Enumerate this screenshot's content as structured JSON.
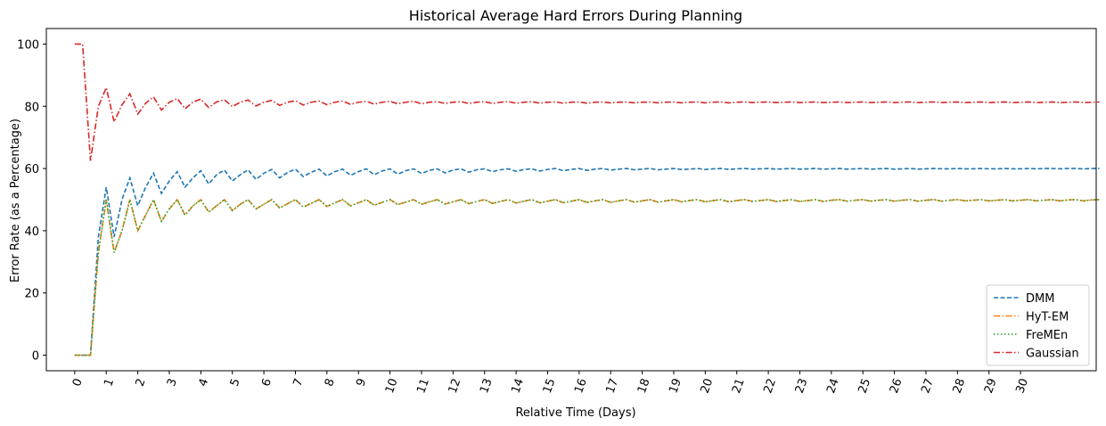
{
  "chart_data": {
    "type": "line",
    "title": "Historical Average Hard Errors During Planning",
    "xlabel": "Relative Time (Days)",
    "ylabel": "Error Rate (as a Percentage)",
    "xlim": [
      -0.9,
      32.4
    ],
    "ylim": [
      -5,
      105
    ],
    "x_ticks": [
      0,
      1,
      2,
      3,
      4,
      5,
      6,
      7,
      8,
      9,
      10,
      11,
      12,
      13,
      14,
      15,
      16,
      17,
      18,
      19,
      20,
      21,
      22,
      23,
      24,
      25,
      26,
      27,
      28,
      29,
      30
    ],
    "y_ticks": [
      0,
      20,
      40,
      60,
      80,
      100
    ],
    "legend": "lower-right",
    "grid": false,
    "x_step": 0.25,
    "series": [
      {
        "name": "DMM",
        "color": "#1f77b4",
        "dash": "dashed",
        "values": [
          0,
          0,
          0,
          38,
          54,
          38,
          50,
          57,
          48,
          54,
          58.5,
          52,
          56,
          59,
          54,
          57,
          59.3,
          55,
          58,
          59.5,
          56,
          58,
          59.6,
          56.5,
          58.5,
          59.7,
          57,
          58.7,
          59.8,
          57.4,
          58.8,
          59.8,
          57.6,
          59,
          59.8,
          57.8,
          59,
          59.9,
          58,
          59.2,
          59.9,
          58.2,
          59.3,
          59.9,
          58.4,
          59.4,
          59.9,
          58.6,
          59.5,
          59.9,
          58.8,
          59.6,
          59.9,
          59,
          59.6,
          59.9,
          59.1,
          59.7,
          59.9,
          59.2,
          59.7,
          60,
          59.3,
          59.7,
          60,
          59.4,
          59.8,
          60,
          59.5,
          59.8,
          60,
          59.6,
          59.8,
          60,
          59.6,
          59.8,
          60,
          59.7,
          59.8,
          60,
          59.7,
          59.9,
          60,
          59.7,
          59.9,
          60,
          59.8,
          59.9,
          60,
          59.8,
          59.9,
          60,
          59.8,
          59.9,
          60,
          59.8,
          59.9,
          60,
          59.8,
          59.9,
          60,
          59.8,
          59.9,
          60,
          59.8,
          59.9,
          60,
          59.8,
          59.9,
          60,
          59.9,
          59.9,
          60,
          59.9,
          59.9,
          60,
          59.9,
          59.9,
          60,
          59.9,
          59.9,
          60,
          59.9,
          60,
          60,
          59.9,
          60,
          60,
          59.9,
          60,
          60
        ]
      },
      {
        "name": "HyT-EM",
        "color": "#ff7f0e",
        "dash": "dashdot",
        "values": [
          0,
          0,
          0,
          33,
          50,
          33,
          40,
          50,
          40,
          45,
          50,
          43,
          47,
          50,
          45,
          48,
          50,
          46,
          48,
          50,
          46.5,
          48.5,
          50,
          47,
          48.5,
          50,
          47.3,
          48.7,
          50,
          47.6,
          48.8,
          50,
          47.8,
          49,
          50,
          48,
          49,
          50,
          48.2,
          49.1,
          50,
          48.4,
          49.2,
          50,
          48.5,
          49.3,
          50,
          48.6,
          49.3,
          50,
          48.7,
          49.4,
          50,
          48.8,
          49.4,
          50,
          48.9,
          49.5,
          50,
          49,
          49.5,
          50,
          49,
          49.5,
          50,
          49.1,
          49.6,
          50,
          49.1,
          49.6,
          50,
          49.2,
          49.6,
          50,
          49.2,
          49.6,
          50,
          49.3,
          49.7,
          50,
          49.3,
          49.7,
          50,
          49.3,
          49.7,
          50,
          49.4,
          49.7,
          50,
          49.4,
          49.7,
          50,
          49.4,
          49.7,
          50,
          49.4,
          49.8,
          50,
          49.5,
          49.8,
          50,
          49.5,
          49.8,
          50,
          49.5,
          49.8,
          50,
          49.5,
          49.8,
          50,
          49.5,
          49.8,
          50,
          49.6,
          49.8,
          50,
          49.6,
          49.8,
          50,
          49.6,
          49.8,
          50,
          49.6,
          49.8,
          50,
          49.6,
          49.9,
          50,
          49.6,
          49.9,
          50
        ]
      },
      {
        "name": "FreMEn",
        "color": "#2ca02c",
        "dash": "dotted",
        "values": [
          0,
          0,
          0,
          33,
          50,
          33,
          40,
          50,
          40,
          45,
          50,
          43,
          47,
          50,
          45,
          48,
          50,
          46,
          48,
          50,
          46.5,
          48.5,
          50,
          47,
          48.5,
          50,
          47.3,
          48.7,
          50,
          47.6,
          48.8,
          50,
          47.8,
          49,
          50,
          48,
          49,
          50,
          48.2,
          49.1,
          50,
          48.4,
          49.2,
          50,
          48.5,
          49.3,
          50,
          48.6,
          49.3,
          50,
          48.7,
          49.4,
          50,
          48.8,
          49.4,
          50,
          48.9,
          49.5,
          50,
          49,
          49.5,
          50,
          49,
          49.5,
          50,
          49.1,
          49.6,
          50,
          49.1,
          49.6,
          50,
          49.2,
          49.6,
          50,
          49.2,
          49.6,
          50,
          49.3,
          49.7,
          50,
          49.3,
          49.7,
          50,
          49.3,
          49.7,
          50,
          49.4,
          49.7,
          50,
          49.4,
          49.7,
          50,
          49.4,
          49.7,
          50,
          49.4,
          49.8,
          50,
          49.5,
          49.8,
          50,
          49.5,
          49.8,
          50,
          49.5,
          49.8,
          50,
          49.5,
          49.8,
          50,
          49.5,
          49.8,
          50,
          49.6,
          49.8,
          50,
          49.6,
          49.8,
          50,
          49.6,
          49.8,
          50,
          49.6,
          49.8,
          50,
          49.6,
          49.9,
          50,
          49.6,
          49.9,
          50
        ]
      },
      {
        "name": "Gaussian",
        "color": "#d62728",
        "dash": "dashdot",
        "values": [
          100,
          100,
          62.5,
          80,
          86,
          75,
          80.5,
          84,
          77.5,
          81,
          83,
          78.8,
          81.3,
          82.5,
          79.2,
          81.4,
          82.3,
          79.6,
          81.4,
          82.1,
          79.9,
          81.3,
          82,
          80.1,
          81.3,
          81.9,
          80.3,
          81.3,
          81.8,
          80.4,
          81.3,
          81.7,
          80.5,
          81.3,
          81.7,
          80.6,
          81.3,
          81.6,
          80.7,
          81.3,
          81.6,
          80.8,
          81.3,
          81.6,
          80.8,
          81.3,
          81.5,
          80.9,
          81.3,
          81.5,
          80.9,
          81.3,
          81.5,
          80.9,
          81.3,
          81.5,
          81,
          81.3,
          81.5,
          81,
          81.3,
          81.4,
          81,
          81.3,
          81.4,
          81,
          81.3,
          81.4,
          81.1,
          81.3,
          81.4,
          81.1,
          81.3,
          81.4,
          81.1,
          81.3,
          81.4,
          81.1,
          81.3,
          81.4,
          81.1,
          81.3,
          81.4,
          81.1,
          81.3,
          81.4,
          81.2,
          81.3,
          81.4,
          81.2,
          81.3,
          81.4,
          81.2,
          81.3,
          81.4,
          81.2,
          81.3,
          81.4,
          81.2,
          81.3,
          81.4,
          81.2,
          81.3,
          81.4,
          81.2,
          81.3,
          81.4,
          81.2,
          81.3,
          81.4,
          81.2,
          81.3,
          81.4,
          81.2,
          81.3,
          81.4,
          81.2,
          81.3,
          81.4,
          81.2,
          81.3,
          81.4,
          81.2,
          81.3,
          81.4,
          81.2,
          81.3,
          81.4,
          81.2,
          81.3,
          81.4
        ]
      }
    ]
  }
}
